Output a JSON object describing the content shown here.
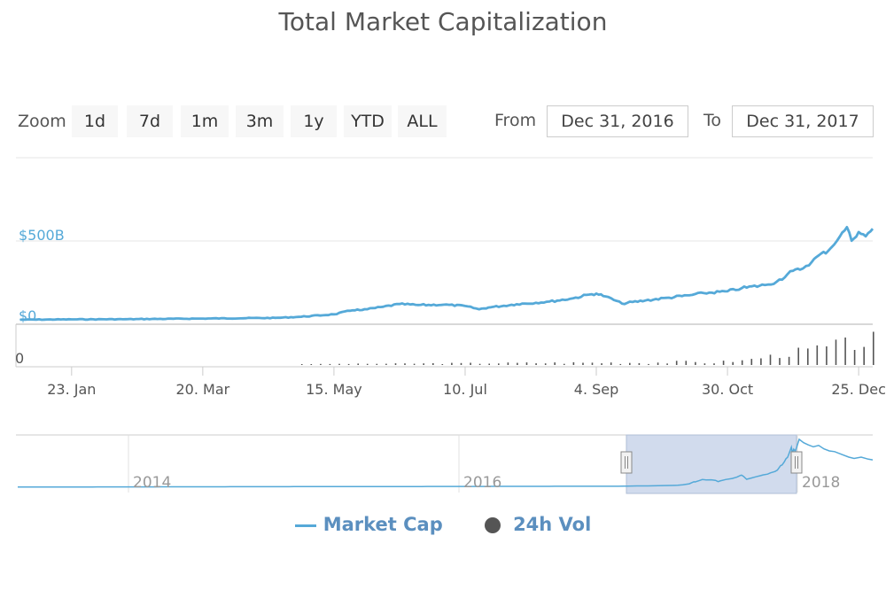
{
  "title": "Total Market Capitalization",
  "zoom": {
    "label": "Zoom",
    "buttons": [
      "1d",
      "7d",
      "1m",
      "3m",
      "1y",
      "YTD",
      "ALL"
    ]
  },
  "range": {
    "from_label": "From",
    "from_value": "Dec 31, 2016",
    "to_label": "To",
    "to_value": "Dec 31, 2017"
  },
  "legend": {
    "market_cap": "Market Cap",
    "volume": "24h Vol"
  },
  "colors": {
    "market_cap": "#55a9d8",
    "axis_label": "#55a9d8",
    "volume": "#555555",
    "navigator_mask": "#c9d5ea",
    "legend_text": "#5b8fbf"
  },
  "chart_data": {
    "type": "line",
    "title": "Total Market Capitalization",
    "x_tick_labels": [
      "23. Jan",
      "20. Mar",
      "15. May",
      "10. Jul",
      "4. Sep",
      "30. Oct",
      "25. Dec"
    ],
    "y_tick_labels": [
      "$0",
      "$500B"
    ],
    "volume_axis_label": "0",
    "xlim": [
      "2016-12-31",
      "2017-12-31"
    ],
    "ylim_billion_usd": [
      0,
      600
    ],
    "series": [
      {
        "name": "Market Cap",
        "unit": "billion USD",
        "x": [
          "2017-01-01",
          "2017-01-23",
          "2017-02-15",
          "2017-03-20",
          "2017-04-20",
          "2017-05-01",
          "2017-05-15",
          "2017-05-22",
          "2017-05-25",
          "2017-05-27",
          "2017-06-05",
          "2017-06-12",
          "2017-06-20",
          "2017-07-01",
          "2017-07-10",
          "2017-07-16",
          "2017-07-20",
          "2017-08-01",
          "2017-08-15",
          "2017-08-25",
          "2017-09-01",
          "2017-09-04",
          "2017-09-08",
          "2017-09-15",
          "2017-09-25",
          "2017-10-05",
          "2017-10-15",
          "2017-10-20",
          "2017-10-30",
          "2017-11-05",
          "2017-11-15",
          "2017-11-20",
          "2017-11-27",
          "2017-11-30",
          "2017-12-05",
          "2017-12-08",
          "2017-12-12",
          "2017-12-17",
          "2017-12-20",
          "2017-12-22",
          "2017-12-25",
          "2017-12-28",
          "2017-12-31"
        ],
        "y": [
          17,
          19,
          20,
          24,
          28,
          35,
          50,
          72,
          80,
          76,
          96,
          113,
          107,
          109,
          101,
          81,
          92,
          112,
          128,
          148,
          171,
          177,
          160,
          116,
          135,
          152,
          169,
          180,
          191,
          210,
          230,
          250,
          317,
          324,
          372,
          412,
          439,
          528,
          585,
          501,
          555,
          528,
          575
        ]
      },
      {
        "name": "24h Vol",
        "unit": "relative",
        "x_range": [
          "2017-05-01",
          "2017-12-31"
        ],
        "approx_peak_billion_usd": 50
      }
    ],
    "navigator": {
      "x_tick_labels": [
        "2014",
        "2016",
        "2018"
      ],
      "selected_range": [
        "2016-12-31",
        "2017-12-31"
      ]
    },
    "grid": true,
    "legend_position": "bottom"
  }
}
